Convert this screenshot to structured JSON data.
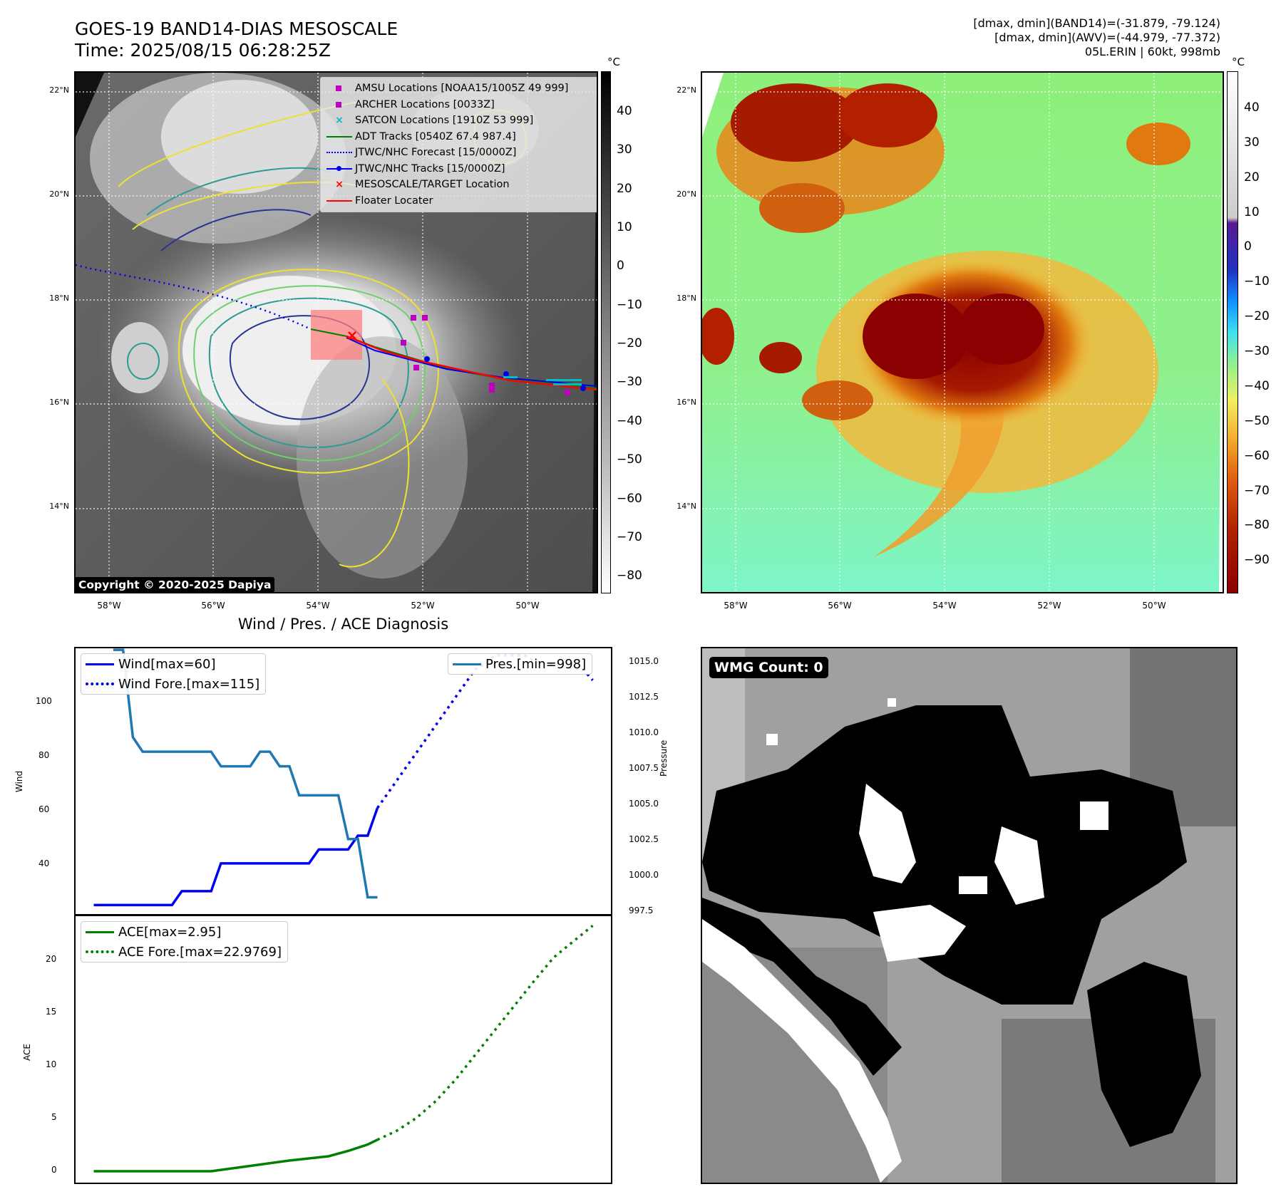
{
  "header": {
    "title_line1": "GOES-19 BAND14-DIAS MESOSCALE",
    "title_line2": "Time: 2025/08/15 06:28:25Z",
    "info_line1": "[dmax, dmin](BAND14)=(-31.879, -79.124)",
    "info_line2": "[dmax, dmin](AWV)=(-44.979, -77.372)",
    "info_line3": "05L.ERIN | 60kt, 998mb"
  },
  "map": {
    "lat_labels": [
      "22°N",
      "20°N",
      "18°N",
      "16°N",
      "14°N"
    ],
    "lon_labels": [
      "58°W",
      "56°W",
      "54°W",
      "52°W",
      "50°W"
    ],
    "copyright": "Copyright © 2020-2025 Dapiya",
    "legend": [
      {
        "label": "AMSU Locations [NOAA15/1005Z 49 999]",
        "color": "#bf00bf",
        "symbol": "square"
      },
      {
        "label": "ARCHER Locations [0033Z]",
        "color": "#bf00bf",
        "symbol": "square"
      },
      {
        "label": "SATCON Locations [1910Z 53 999]",
        "color": "#00bfbf",
        "symbol": "x"
      },
      {
        "label": "ADT Tracks [0540Z 67.4 987.4]",
        "color": "#008000",
        "symbol": "line"
      },
      {
        "label": "JTWC/NHC Forecast [15/0000Z]",
        "color": "#0000ff",
        "symbol": "dotted"
      },
      {
        "label": "JTWC/NHC Tracks [15/0000Z]",
        "color": "#0000ff",
        "symbol": "line-dot"
      },
      {
        "label": "MESOSCALE/TARGET Location",
        "color": "#ff0000",
        "symbol": "x"
      },
      {
        "label": "Floater Locater",
        "color": "#ff0000",
        "symbol": "line"
      }
    ]
  },
  "colorbar_left": {
    "unit": "°C",
    "ticks": [
      "40",
      "30",
      "20",
      "10",
      "0",
      "−10",
      "−20",
      "−30",
      "−40",
      "−50",
      "−60",
      "−70",
      "−80"
    ]
  },
  "colorbar_right": {
    "unit": "°C",
    "ticks": [
      "40",
      "30",
      "20",
      "10",
      "0",
      "−10",
      "−20",
      "−30",
      "−40",
      "−50",
      "−60",
      "−70",
      "−80",
      "−90"
    ]
  },
  "wmg": {
    "label": "WMG Count: 0"
  },
  "chart_data": [
    {
      "type": "line",
      "title": "Wind / Pres. / ACE Diagnosis",
      "ylabel": "Wind",
      "ylabel_right": "Pressure",
      "ylim": [
        21.5,
        118
      ],
      "ylim_right": [
        996.8,
        1015.2
      ],
      "yticks": [
        "40",
        "60",
        "80",
        "100"
      ],
      "yticks_right": [
        "997.5",
        "1000.0",
        "1002.5",
        "1005.0",
        "1007.5",
        "1010.0",
        "1012.5",
        "1015.0"
      ],
      "legend": [
        "Wind[max=60]",
        "Wind Fore.[max=115]"
      ],
      "legend_right": [
        "Pres.[min=998]"
      ],
      "series": [
        {
          "name": "Wind[max=60]",
          "color": "#0000ee",
          "style": "solid",
          "x": [
            0,
            1,
            2,
            3,
            4,
            5,
            6,
            7,
            8,
            9,
            10,
            11,
            12,
            13,
            14,
            15,
            16,
            17,
            18,
            19,
            20,
            21,
            22,
            23,
            24,
            25,
            26,
            27,
            28,
            29
          ],
          "values": [
            25,
            25,
            25,
            25,
            25,
            25,
            25,
            25,
            25,
            30,
            30,
            30,
            30,
            40,
            40,
            40,
            40,
            40,
            40,
            40,
            40,
            40,
            40,
            45,
            45,
            45,
            45,
            50,
            50,
            60
          ]
        },
        {
          "name": "Wind Fore.[max=115]",
          "color": "#0000ee",
          "style": "dotted",
          "x": [
            29,
            30,
            31,
            32,
            33,
            34,
            35,
            36,
            37,
            38,
            39,
            40,
            41,
            42,
            43,
            44,
            45,
            46,
            47,
            48,
            49,
            50,
            51
          ],
          "values": [
            60,
            65,
            70,
            75,
            80,
            85,
            90,
            95,
            100,
            105,
            110,
            112,
            115,
            115,
            115,
            115,
            113,
            112,
            112,
            111,
            110,
            110,
            106
          ]
        },
        {
          "name": "Pres.[min=998]",
          "color": "#1f77b4",
          "style": "solid",
          "axis": "right",
          "x": [
            2,
            3,
            4,
            5,
            6,
            7,
            8,
            9,
            10,
            11,
            12,
            13,
            14,
            15,
            16,
            17,
            18,
            19,
            20,
            21,
            22,
            23,
            24,
            25,
            26,
            27,
            28,
            29
          ],
          "values": [
            1015,
            1015,
            1009,
            1008,
            1008,
            1008,
            1008,
            1008,
            1008,
            1008,
            1008,
            1007,
            1007,
            1007,
            1007,
            1008,
            1008,
            1007,
            1007,
            1005,
            1005,
            1005,
            1005,
            1005,
            1002,
            1002,
            998,
            998
          ]
        }
      ]
    },
    {
      "type": "line",
      "ylabel": "ACE",
      "ylim": [
        -1.2,
        24
      ],
      "yticks": [
        "0",
        "5",
        "10",
        "15",
        "20"
      ],
      "legend": [
        "ACE[max=2.95]",
        "ACE Fore.[max=22.9769]"
      ],
      "series": [
        {
          "name": "ACE[max=2.95]",
          "color": "#008000",
          "style": "solid",
          "x": [
            0,
            4,
            8,
            12,
            16,
            20,
            24,
            26,
            28,
            29
          ],
          "values": [
            0,
            0,
            0,
            0,
            0.5,
            1.0,
            1.4,
            1.9,
            2.5,
            2.95
          ]
        },
        {
          "name": "ACE Fore.[max=22.9769]",
          "color": "#008000",
          "style": "dotted",
          "x": [
            29,
            31,
            33,
            35,
            37,
            39,
            41,
            43,
            45,
            47,
            49,
            51
          ],
          "values": [
            2.95,
            3.8,
            5.0,
            6.6,
            8.6,
            10.9,
            13.2,
            15.5,
            17.8,
            20.0,
            21.5,
            22.98
          ]
        }
      ]
    }
  ]
}
